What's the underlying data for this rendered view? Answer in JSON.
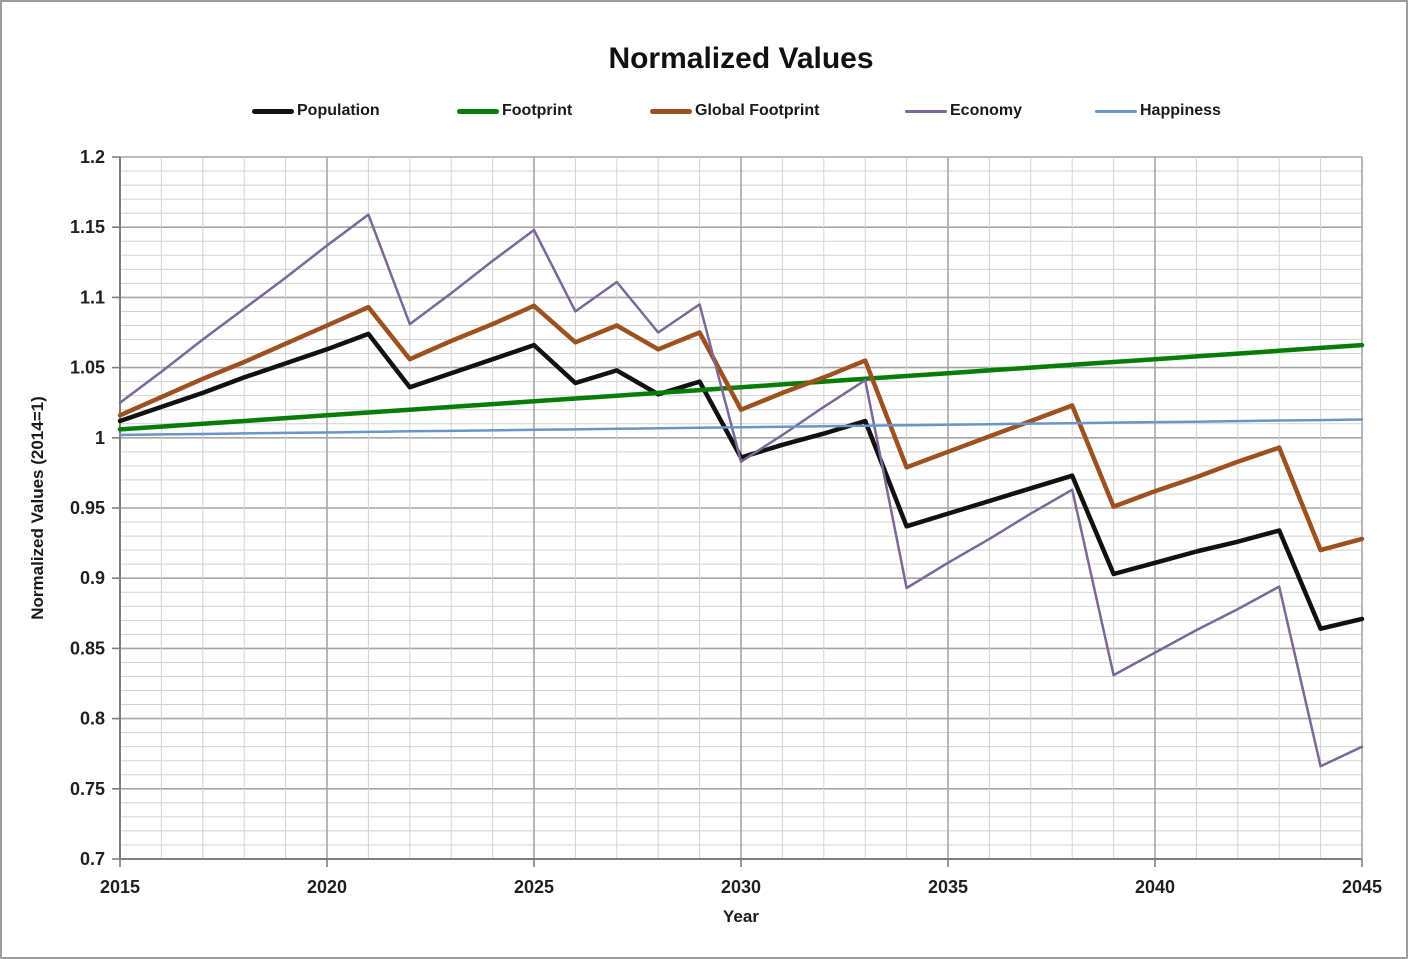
{
  "title": "Normalized Values",
  "chart_data": {
    "type": "line",
    "title": "Normalized Values",
    "xlabel": "Year",
    "ylabel": "Normalized Values (2014=1)",
    "x_range": [
      2015,
      2045
    ],
    "y_range": [
      0.7,
      1.2
    ],
    "x_tick_labels": [
      "2015",
      "2020",
      "2025",
      "2030",
      "2035",
      "2040",
      "2045"
    ],
    "y_tick_labels": [
      "1.2",
      "1.15",
      "1.1",
      "1.05",
      "1",
      "0.95",
      "0.9",
      "0.85",
      "0.8",
      "0.75",
      "0.7"
    ],
    "x_minor_step": 1,
    "y_minor_step": 0.01,
    "grid": "on",
    "legend_position": "top",
    "years": [
      2015,
      2016,
      2017,
      2018,
      2019,
      2020,
      2021,
      2022,
      2023,
      2024,
      2025,
      2026,
      2027,
      2028,
      2029,
      2030,
      2031,
      2032,
      2033,
      2034,
      2035,
      2036,
      2037,
      2038,
      2039,
      2040,
      2041,
      2042,
      2043,
      2044,
      2045
    ],
    "series": [
      {
        "name": "Population",
        "color": "#111111",
        "line_width": 4.5,
        "values": [
          1.012,
          1.022,
          1.032,
          1.043,
          1.053,
          1.063,
          1.074,
          1.036,
          1.046,
          1.056,
          1.066,
          1.039,
          1.048,
          1.031,
          1.04,
          0.986,
          0.995,
          1.003,
          1.012,
          0.937,
          0.946,
          0.955,
          0.964,
          0.973,
          0.903,
          0.911,
          0.919,
          0.926,
          0.934,
          0.864,
          0.871
        ]
      },
      {
        "name": "Footprint",
        "color": "#077d07",
        "line_width": 4.5,
        "values": [
          1.006,
          1.008,
          1.01,
          1.012,
          1.014,
          1.016,
          1.018,
          1.02,
          1.022,
          1.024,
          1.026,
          1.028,
          1.03,
          1.032,
          1.034,
          1.036,
          1.038,
          1.04,
          1.042,
          1.044,
          1.046,
          1.048,
          1.05,
          1.052,
          1.054,
          1.056,
          1.058,
          1.06,
          1.062,
          1.064,
          1.066
        ]
      },
      {
        "name": "Global Footprint",
        "color": "#9e5120",
        "line_width": 4.5,
        "values": [
          1.016,
          1.029,
          1.042,
          1.054,
          1.067,
          1.08,
          1.093,
          1.056,
          1.069,
          1.081,
          1.094,
          1.068,
          1.08,
          1.063,
          1.075,
          1.02,
          1.032,
          1.043,
          1.055,
          0.979,
          0.99,
          1.001,
          1.012,
          1.023,
          0.951,
          0.962,
          0.972,
          0.983,
          0.993,
          0.92,
          0.928
        ]
      },
      {
        "name": "Economy",
        "color": "#7a6896",
        "line_width": 2.5,
        "values": [
          1.025,
          1.047,
          1.07,
          1.092,
          1.114,
          1.137,
          1.159,
          1.081,
          1.103,
          1.126,
          1.148,
          1.09,
          1.111,
          1.075,
          1.095,
          0.983,
          1.002,
          1.022,
          1.041,
          0.893,
          0.911,
          0.928,
          0.946,
          0.963,
          0.831,
          0.847,
          0.863,
          0.878,
          0.894,
          0.766,
          0.78
        ]
      },
      {
        "name": "Happiness",
        "color": "#6896c8",
        "line_width": 2.5,
        "values": [
          1.002,
          1.0024,
          1.0027,
          1.0031,
          1.0035,
          1.0038,
          1.0042,
          1.0046,
          1.0049,
          1.0053,
          1.0057,
          1.006,
          1.0064,
          1.0068,
          1.0071,
          1.0075,
          1.0079,
          1.0082,
          1.0086,
          1.009,
          1.0093,
          1.0097,
          1.0101,
          1.0104,
          1.0108,
          1.0112,
          1.0115,
          1.0119,
          1.0123,
          1.0126,
          1.013
        ]
      }
    ]
  }
}
